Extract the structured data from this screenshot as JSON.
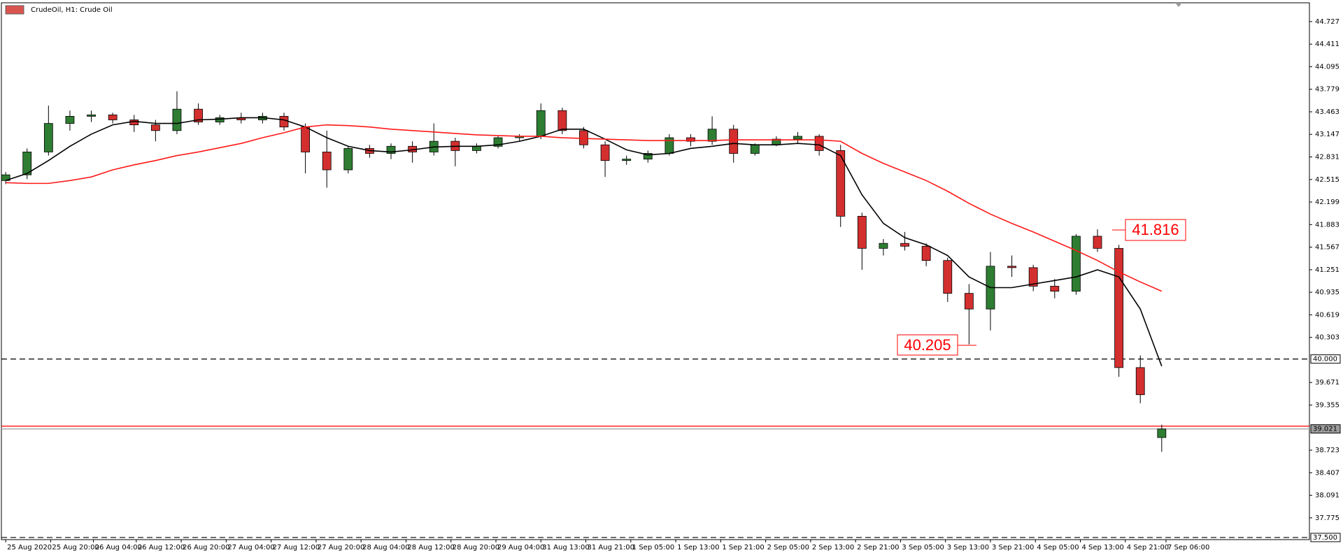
{
  "chart_data": {
    "type": "candlestick",
    "title": "CrudeOil, H1:  Crude Oil",
    "up_color": "#2e7d32",
    "down_color": "#d32f2f",
    "xlim": [
      -0.2,
      60.9
    ],
    "ylim": [
      37.47,
      44.99
    ],
    "xticks": [
      {
        "value": 0,
        "label": "25 Aug 2020"
      },
      {
        "value": 2.1,
        "label": "25 Aug 20:00"
      },
      {
        "value": 4.1,
        "label": "26 Aug 04:00"
      },
      {
        "value": 6.1,
        "label": "26 Aug 12:00"
      },
      {
        "value": 8.2,
        "label": "26 Aug 20:00"
      },
      {
        "value": 10.3,
        "label": "27 Aug 04:00"
      },
      {
        "value": 12.4,
        "label": "27 Aug 12:00"
      },
      {
        "value": 14.5,
        "label": "27 Aug 20:00"
      },
      {
        "value": 16.6,
        "label": "28 Aug 04:00"
      },
      {
        "value": 18.7,
        "label": "28 Aug 12:00"
      },
      {
        "value": 20.8,
        "label": "28 Aug 20:00"
      },
      {
        "value": 22.9,
        "label": "29 Aug 04:00"
      },
      {
        "value": 25,
        "label": "31 Aug 13:00"
      },
      {
        "value": 27.1,
        "label": "31 Aug 21:00"
      },
      {
        "value": 29.2,
        "label": "1 Sep 05:00"
      },
      {
        "value": 31.3,
        "label": "1 Sep 13:00"
      },
      {
        "value": 33.4,
        "label": "1 Sep 21:00"
      },
      {
        "value": 35.5,
        "label": "2 Sep 05:00"
      },
      {
        "value": 37.6,
        "label": "2 Sep 13:00"
      },
      {
        "value": 39.7,
        "label": "2 Sep 21:00"
      },
      {
        "value": 41.8,
        "label": "3 Sep 05:00"
      },
      {
        "value": 43.9,
        "label": "3 Sep 13:00"
      },
      {
        "value": 46,
        "label": "3 Sep 21:00"
      },
      {
        "value": 48.1,
        "label": "4 Sep 05:00"
      },
      {
        "value": 50.2,
        "label": "4 Sep 13:00"
      },
      {
        "value": 52.3,
        "label": "4 Sep 21:00"
      },
      {
        "value": 54.2,
        "label": "7 Sep 06:00"
      }
    ],
    "yticks": [
      44.727,
      44.411,
      44.095,
      43.779,
      43.463,
      43.147,
      42.831,
      42.515,
      42.199,
      41.883,
      41.567,
      41.251,
      40.935,
      40.619,
      40.303,
      39.671,
      39.355,
      38.723,
      38.407,
      38.091,
      37.775
    ],
    "candles": [
      [
        42.5,
        42.62,
        42.45,
        42.58
      ],
      [
        42.58,
        42.95,
        42.52,
        42.9
      ],
      [
        42.9,
        43.55,
        42.85,
        43.3
      ],
      [
        43.3,
        43.48,
        43.2,
        43.4
      ],
      [
        43.4,
        43.48,
        43.32,
        43.42
      ],
      [
        43.42,
        43.45,
        43.3,
        43.35
      ],
      [
        43.35,
        43.42,
        43.18,
        43.28
      ],
      [
        43.28,
        43.35,
        43.05,
        43.2
      ],
      [
        43.2,
        43.75,
        43.15,
        43.5
      ],
      [
        43.5,
        43.58,
        43.28,
        43.32
      ],
      [
        43.32,
        43.42,
        43.28,
        43.38
      ],
      [
        43.38,
        43.45,
        43.3,
        43.35
      ],
      [
        43.35,
        43.45,
        43.3,
        43.4
      ],
      [
        43.4,
        43.45,
        43.2,
        43.25
      ],
      [
        43.25,
        43.3,
        42.6,
        42.9
      ],
      [
        42.9,
        43.2,
        42.4,
        42.65
      ],
      [
        42.65,
        42.98,
        42.6,
        42.95
      ],
      [
        42.95,
        43.0,
        42.82,
        42.88
      ],
      [
        42.88,
        43.02,
        42.8,
        42.98
      ],
      [
        42.98,
        43.05,
        42.75,
        42.9
      ],
      [
        42.9,
        43.3,
        42.85,
        43.05
      ],
      [
        43.05,
        43.1,
        42.7,
        42.92
      ],
      [
        42.92,
        43.02,
        42.88,
        42.98
      ],
      [
        42.98,
        43.12,
        42.95,
        43.1
      ],
      [
        43.1,
        43.15,
        43.05,
        43.12
      ],
      [
        43.12,
        43.58,
        43.08,
        43.48
      ],
      [
        43.48,
        43.52,
        43.15,
        43.2
      ],
      [
        43.2,
        43.25,
        42.95,
        43.0
      ],
      [
        43.0,
        43.05,
        42.55,
        42.78
      ],
      [
        42.78,
        42.85,
        42.72,
        42.8
      ],
      [
        42.8,
        42.92,
        42.75,
        42.88
      ],
      [
        42.88,
        43.15,
        42.85,
        43.1
      ],
      [
        43.1,
        43.15,
        42.98,
        43.05
      ],
      [
        43.05,
        43.4,
        43.0,
        43.22
      ],
      [
        43.22,
        43.28,
        42.75,
        42.88
      ],
      [
        42.88,
        43.02,
        42.85,
        43.0
      ],
      [
        43.0,
        43.12,
        42.98,
        43.08
      ],
      [
        43.08,
        43.18,
        43.02,
        43.12
      ],
      [
        43.12,
        43.15,
        42.85,
        42.92
      ],
      [
        42.92,
        43.0,
        41.85,
        42.0
      ],
      [
        42.0,
        42.05,
        41.25,
        41.55
      ],
      [
        41.55,
        41.68,
        41.45,
        41.62
      ],
      [
        41.62,
        41.78,
        41.52,
        41.58
      ],
      [
        41.58,
        41.62,
        41.3,
        41.38
      ],
      [
        41.38,
        41.42,
        40.8,
        40.92
      ],
      [
        40.92,
        41.05,
        40.205,
        40.7
      ],
      [
        40.7,
        41.5,
        40.4,
        41.3
      ],
      [
        41.3,
        41.45,
        41.15,
        41.28
      ],
      [
        41.28,
        41.32,
        40.95,
        41.02
      ],
      [
        41.02,
        41.12,
        40.85,
        40.95
      ],
      [
        40.95,
        41.75,
        40.9,
        41.72
      ],
      [
        41.72,
        41.816,
        41.5,
        41.55
      ],
      [
        41.55,
        41.6,
        39.75,
        39.88
      ],
      [
        39.88,
        40.05,
        39.38,
        39.5
      ],
      [
        38.9,
        39.08,
        38.7,
        39.02
      ]
    ],
    "series": [
      {
        "color": "#000000",
        "values": [
          42.5,
          42.6,
          42.78,
          42.98,
          43.15,
          43.28,
          43.33,
          43.3,
          43.3,
          43.35,
          43.36,
          43.38,
          43.38,
          43.35,
          43.25,
          43.1,
          42.98,
          42.92,
          42.9,
          42.93,
          42.97,
          42.98,
          42.98,
          43.0,
          43.05,
          43.12,
          43.22,
          43.22,
          43.08,
          42.93,
          42.86,
          42.88,
          42.95,
          42.98,
          43.02,
          43.0,
          43.0,
          43.02,
          43.0,
          42.85,
          42.3,
          41.9,
          41.7,
          41.6,
          41.45,
          41.15,
          41.0,
          41.0,
          41.05,
          41.1,
          41.15,
          41.25,
          41.15,
          40.7,
          39.9
        ]
      },
      {
        "color": "#ff1a1a",
        "values": [
          42.47,
          42.46,
          42.46,
          42.5,
          42.55,
          42.65,
          42.72,
          42.78,
          42.85,
          42.9,
          42.96,
          43.02,
          43.1,
          43.17,
          43.25,
          43.28,
          43.27,
          43.25,
          43.22,
          43.2,
          43.18,
          43.16,
          43.14,
          43.13,
          43.12,
          43.12,
          43.1,
          43.09,
          43.08,
          43.07,
          43.06,
          43.06,
          43.06,
          43.06,
          43.07,
          43.07,
          43.07,
          43.07,
          43.07,
          43.05,
          42.88,
          42.74,
          42.62,
          42.5,
          42.35,
          42.18,
          42.03,
          41.9,
          41.78,
          41.65,
          41.52,
          41.38,
          41.22,
          41.08,
          40.95
        ]
      }
    ],
    "hlines": [
      {
        "value": 40,
        "label": "40.000",
        "color": "#000000",
        "dashed": true
      },
      {
        "value": 37.5,
        "label": "37.500",
        "color": "#000000",
        "dashed": true
      },
      {
        "value": 39.06,
        "color": "#ff0000",
        "dashed": false
      },
      {
        "value": 39.021,
        "label": "39.021",
        "color": "#9e9e9e",
        "dashed": false
      }
    ],
    "annotations": [
      "40.205",
      "41.816"
    ]
  }
}
